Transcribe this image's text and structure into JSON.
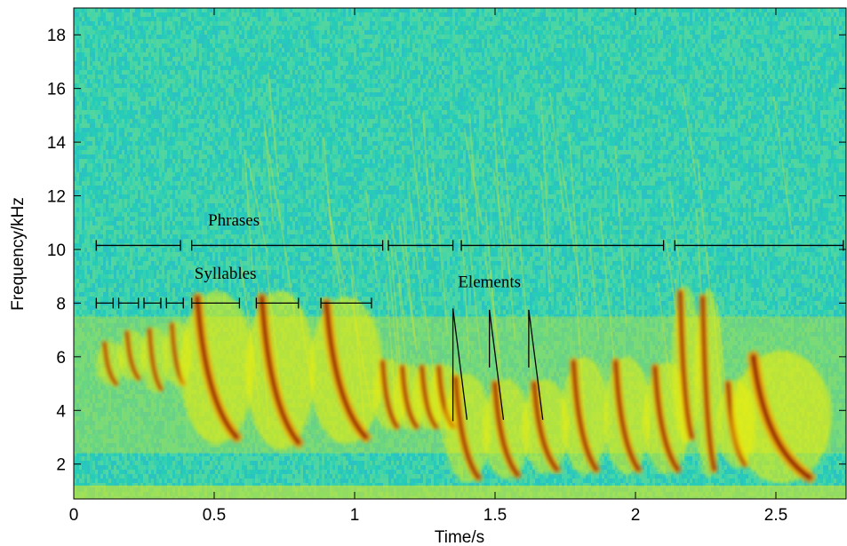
{
  "chart_data": {
    "type": "heatmap",
    "xlabel": "Time/s",
    "ylabel": "Frequency/kHz",
    "xlim": [
      0,
      2.75
    ],
    "ylim": [
      0.7,
      19
    ],
    "x_ticks": [
      0,
      0.5,
      1,
      1.5,
      2,
      2.5
    ],
    "x_tick_labels": [
      "0",
      "0.5",
      "1",
      "1.5",
      "2",
      "2.5"
    ],
    "y_ticks": [
      2,
      4,
      6,
      8,
      10,
      12,
      14,
      16,
      18
    ],
    "y_tick_labels": [
      "2",
      "4",
      "6",
      "8",
      "10",
      "12",
      "14",
      "16",
      "18"
    ],
    "colormap": [
      "#00c8c0",
      "#40d8a0",
      "#a8e040",
      "#f8f000",
      "#ff9800",
      "#e02000",
      "#900000"
    ],
    "grid": false,
    "annotations": [
      {
        "label": "Phrases",
        "label_x": 0.57,
        "label_y": 10.9
      },
      {
        "label": "Syllables",
        "label_x": 0.54,
        "label_y": 8.9
      },
      {
        "label": "Elements",
        "label_x": 1.48,
        "label_y": 8.6
      }
    ],
    "phrases": {
      "y": 10.15,
      "spans": [
        [
          0.08,
          0.38
        ],
        [
          0.42,
          1.1
        ],
        [
          1.12,
          1.35
        ],
        [
          1.38,
          2.1
        ],
        [
          2.14,
          2.74
        ]
      ]
    },
    "syllables": {
      "y": 8.0,
      "spans": [
        [
          0.08,
          0.14
        ],
        [
          0.16,
          0.23
        ],
        [
          0.25,
          0.31
        ],
        [
          0.33,
          0.39
        ],
        [
          0.42,
          0.59
        ],
        [
          0.65,
          0.8
        ],
        [
          0.88,
          1.06
        ]
      ]
    },
    "elements": [
      {
        "x_top": 1.35,
        "y_top": 7.8,
        "x_bottom": 1.4,
        "y_bottom": 3.65,
        "x_split": 1.35,
        "y_split": 3.6
      },
      {
        "x_top": 1.48,
        "y_top": 7.75,
        "x_bottom": 1.53,
        "y_bottom": 3.65,
        "x_split": 1.48,
        "y_split": 5.6
      },
      {
        "x_top": 1.62,
        "y_top": 7.75,
        "x_bottom": 1.67,
        "y_bottom": 3.65,
        "x_split": 1.62,
        "y_split": 5.6
      }
    ],
    "calls": [
      {
        "t": 0.11,
        "f_top": 6.5,
        "f_bottom": 5.0,
        "dur": 0.04,
        "intensity": 0.7,
        "spread": 0.5
      },
      {
        "t": 0.19,
        "f_top": 6.9,
        "f_bottom": 5.2,
        "dur": 0.04,
        "intensity": 0.7,
        "spread": 0.5
      },
      {
        "t": 0.27,
        "f_top": 7.0,
        "f_bottom": 4.8,
        "dur": 0.04,
        "intensity": 0.7,
        "spread": 0.5
      },
      {
        "t": 0.35,
        "f_top": 7.2,
        "f_bottom": 5.0,
        "dur": 0.04,
        "intensity": 0.7,
        "spread": 0.5
      },
      {
        "t": 0.44,
        "f_top": 8.2,
        "f_bottom": 3.0,
        "dur": 0.14,
        "intensity": 1.0,
        "spread": 1.2
      },
      {
        "t": 0.67,
        "f_top": 8.2,
        "f_bottom": 2.8,
        "dur": 0.13,
        "intensity": 1.0,
        "spread": 1.2
      },
      {
        "t": 0.9,
        "f_top": 8.0,
        "f_bottom": 3.0,
        "dur": 0.14,
        "intensity": 1.0,
        "spread": 1.2
      },
      {
        "t": 1.1,
        "f_top": 5.8,
        "f_bottom": 3.4,
        "dur": 0.05,
        "intensity": 0.8,
        "spread": 0.7
      },
      {
        "t": 1.17,
        "f_top": 5.6,
        "f_bottom": 3.4,
        "dur": 0.05,
        "intensity": 0.8,
        "spread": 0.7
      },
      {
        "t": 1.24,
        "f_top": 5.6,
        "f_bottom": 3.4,
        "dur": 0.05,
        "intensity": 0.8,
        "spread": 0.7
      },
      {
        "t": 1.3,
        "f_top": 5.6,
        "f_bottom": 3.4,
        "dur": 0.05,
        "intensity": 0.8,
        "spread": 0.7
      },
      {
        "t": 1.36,
        "f_top": 5.2,
        "f_bottom": 1.5,
        "dur": 0.08,
        "intensity": 0.9,
        "spread": 0.9
      },
      {
        "t": 1.5,
        "f_top": 5.0,
        "f_bottom": 1.6,
        "dur": 0.08,
        "intensity": 0.9,
        "spread": 0.9
      },
      {
        "t": 1.64,
        "f_top": 5.0,
        "f_bottom": 1.8,
        "dur": 0.08,
        "intensity": 0.9,
        "spread": 0.9
      },
      {
        "t": 1.78,
        "f_top": 5.8,
        "f_bottom": 1.8,
        "dur": 0.08,
        "intensity": 0.9,
        "spread": 0.9
      },
      {
        "t": 1.93,
        "f_top": 5.8,
        "f_bottom": 1.8,
        "dur": 0.08,
        "intensity": 0.9,
        "spread": 0.9
      },
      {
        "t": 2.07,
        "f_top": 5.6,
        "f_bottom": 1.8,
        "dur": 0.08,
        "intensity": 0.9,
        "spread": 0.9
      },
      {
        "t": 2.16,
        "f_top": 8.4,
        "f_bottom": 3.0,
        "dur": 0.04,
        "intensity": 1.0,
        "spread": 0.8
      },
      {
        "t": 2.24,
        "f_top": 8.2,
        "f_bottom": 1.8,
        "dur": 0.04,
        "intensity": 1.0,
        "spread": 0.8
      },
      {
        "t": 2.33,
        "f_top": 5.0,
        "f_bottom": 2.0,
        "dur": 0.06,
        "intensity": 0.9,
        "spread": 0.8
      },
      {
        "t": 2.42,
        "f_top": 6.0,
        "f_bottom": 1.5,
        "dur": 0.2,
        "intensity": 1.0,
        "spread": 1.4
      }
    ]
  }
}
